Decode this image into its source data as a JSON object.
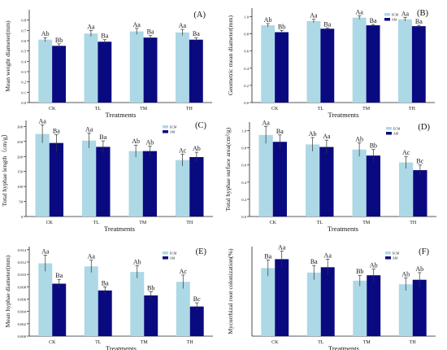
{
  "colors": {
    "ecm": "#add8e6",
    "am": "#0a0a80",
    "axis": "#222222",
    "errorbar": "#333333"
  },
  "chart_data": [
    {
      "type": "bar",
      "panel_label": "(A)",
      "xlabel": "Treatments",
      "ylabel": "Mean weight diameter(mm)",
      "categories": [
        "CK",
        "TL",
        "TM",
        "TH"
      ],
      "ylim": [
        0,
        0.9
      ],
      "yticks": [
        "0.0",
        "0.1",
        "0.2",
        "0.3",
        "0.4",
        "0.5",
        "0.6",
        "0.7",
        "0.8"
      ],
      "ytick_values": [
        0,
        0.1,
        0.2,
        0.3,
        0.4,
        0.5,
        0.6,
        0.7,
        0.8
      ],
      "legend": false,
      "series": [
        {
          "name": "ECM",
          "values": [
            0.61,
            0.67,
            0.69,
            0.68
          ],
          "errors": [
            0.02,
            0.03,
            0.03,
            0.03
          ],
          "labels": [
            "Ab",
            "Aa",
            "Aa",
            "Aa"
          ]
        },
        {
          "name": "AM",
          "values": [
            0.55,
            0.59,
            0.63,
            0.61
          ],
          "errors": [
            0.02,
            0.02,
            0.02,
            0.02
          ],
          "labels": [
            "Bb",
            "Ba",
            "Ba",
            "Ba"
          ]
        }
      ]
    },
    {
      "type": "bar",
      "panel_label": "(B)",
      "xlabel": "Treatments",
      "ylabel": "Geometric mean diameter(mm)",
      "categories": [
        "CK",
        "TL",
        "TM",
        "TH"
      ],
      "ylim": [
        0,
        1.1
      ],
      "yticks": [
        "0.0",
        "0.2",
        "0.4",
        "0.6",
        "0.8",
        "1.0"
      ],
      "ytick_values": [
        0,
        0.2,
        0.4,
        0.6,
        0.8,
        1.0
      ],
      "legend": true,
      "series": [
        {
          "name": "ECM",
          "values": [
            0.9,
            0.95,
            0.99,
            0.97
          ],
          "errors": [
            0.02,
            0.02,
            0.02,
            0.02
          ],
          "labels": [
            "Ab",
            "Aa",
            "Aa",
            "Aa"
          ]
        },
        {
          "name": "AM",
          "values": [
            0.82,
            0.86,
            0.9,
            0.89
          ],
          "errors": [
            0.02,
            0.01,
            0.01,
            0.01
          ],
          "labels": [
            "Bb",
            "Ba",
            "Ba",
            "Ba"
          ]
        }
      ]
    },
    {
      "type": "bar",
      "panel_label": "(C)",
      "xlabel": "Treatments",
      "ylabel": "Total hyphae length（cm/g）",
      "categories": [
        "CK",
        "TL",
        "TM",
        "TH"
      ],
      "ylim": [
        0,
        320
      ],
      "yticks": [
        "0",
        "50",
        "100",
        "150",
        "200",
        "250",
        "300"
      ],
      "ytick_values": [
        0,
        50,
        100,
        150,
        200,
        250,
        300
      ],
      "legend": true,
      "series": [
        {
          "name": "ECM",
          "values": [
            275,
            253,
            218,
            188
          ],
          "errors": [
            30,
            25,
            20,
            20
          ],
          "labels": [
            "Aa",
            "Aa",
            "Ab",
            "Ac"
          ]
        },
        {
          "name": "AM",
          "values": [
            245,
            232,
            218,
            198
          ],
          "errors": [
            28,
            20,
            17,
            16
          ],
          "labels": [
            "Ba",
            "Ba",
            "Ab",
            "Ab"
          ]
        }
      ]
    },
    {
      "type": "bar",
      "panel_label": "(D)",
      "xlabel": "Treatments",
      "ylabel": "Total hyphae surface area(cm²/g)",
      "categories": [
        "CK",
        "TL",
        "TM",
        "TH"
      ],
      "ylim": [
        0,
        1.1
      ],
      "yticks": [
        "0.0",
        "0.2",
        "0.4",
        "0.6",
        "0.8",
        "1.0"
      ],
      "ytick_values": [
        0,
        0.2,
        0.4,
        0.6,
        0.8,
        1.0
      ],
      "legend": true,
      "series": [
        {
          "name": "ECM",
          "values": [
            0.95,
            0.84,
            0.78,
            0.63
          ],
          "errors": [
            0.1,
            0.08,
            0.08,
            0.07
          ],
          "labels": [
            "Aa",
            "Ab",
            "Ab",
            "Ac"
          ]
        },
        {
          "name": "AM",
          "values": [
            0.87,
            0.81,
            0.71,
            0.54
          ],
          "errors": [
            0.08,
            0.08,
            0.07,
            0.06
          ],
          "labels": [
            "Ba",
            "Aa",
            "Bb",
            "Bc"
          ]
        }
      ]
    },
    {
      "type": "bar",
      "panel_label": "(E)",
      "xlabel": "Treatments",
      "ylabel": "Mean hyphae diameter(mm)",
      "categories": [
        "CK",
        "TL",
        "TM",
        "TH"
      ],
      "ylim": [
        0,
        0.0145
      ],
      "yticks": [
        "0.000",
        "0.002",
        "0.004",
        "0.006",
        "0.008",
        "0.010",
        "0.012",
        "0.014"
      ],
      "ytick_values": [
        0,
        0.002,
        0.004,
        0.006,
        0.008,
        0.01,
        0.012,
        0.014
      ],
      "legend": true,
      "series": [
        {
          "name": "ECM",
          "values": [
            0.0118,
            0.0113,
            0.0104,
            0.0088
          ],
          "errors": [
            0.0013,
            0.001,
            0.001,
            0.0011
          ],
          "labels": [
            "Aa",
            "Aa",
            "Ab",
            "Ac"
          ]
        },
        {
          "name": "AM",
          "values": [
            0.0085,
            0.0074,
            0.0066,
            0.0048
          ],
          "errors": [
            0.0007,
            0.0006,
            0.0006,
            0.0006
          ],
          "labels": [
            "Ba",
            "Ba",
            "Bb",
            "Bc"
          ]
        }
      ]
    },
    {
      "type": "bar",
      "panel_label": "(F)",
      "xlabel": "Treatments",
      "ylabel": "Mycorrhizal root colonization(%)",
      "categories": [
        "CK",
        "TL",
        "TM",
        "TH"
      ],
      "ylim": [
        0,
        100
      ],
      "yticks": [],
      "ytick_values": [],
      "legend": true,
      "series": [
        {
          "name": "ECM",
          "values": [
            76,
            71,
            62,
            58
          ],
          "errors": [
            9,
            8,
            6,
            7
          ],
          "labels": [
            "Ba",
            "Ba",
            "Bb",
            "Ab"
          ]
        },
        {
          "name": "AM",
          "values": [
            86,
            77,
            68,
            63
          ],
          "errors": [
            9,
            9,
            7,
            8
          ],
          "labels": [
            "Aa",
            "Aa",
            "Ab",
            "Ab"
          ]
        }
      ]
    }
  ]
}
